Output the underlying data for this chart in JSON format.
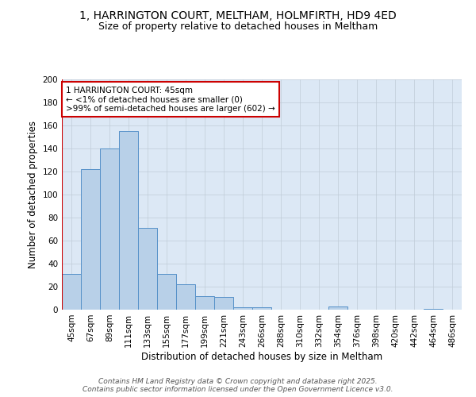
{
  "title": "1, HARRINGTON COURT, MELTHAM, HOLMFIRTH, HD9 4ED",
  "subtitle": "Size of property relative to detached houses in Meltham",
  "xlabel": "Distribution of detached houses by size in Meltham",
  "ylabel": "Number of detached properties",
  "categories": [
    "45sqm",
    "67sqm",
    "89sqm",
    "111sqm",
    "133sqm",
    "155sqm",
    "177sqm",
    "199sqm",
    "221sqm",
    "243sqm",
    "266sqm",
    "288sqm",
    "310sqm",
    "332sqm",
    "354sqm",
    "376sqm",
    "398sqm",
    "420sqm",
    "442sqm",
    "464sqm",
    "486sqm"
  ],
  "values": [
    31,
    122,
    140,
    155,
    71,
    31,
    22,
    12,
    11,
    2,
    2,
    0,
    0,
    0,
    3,
    0,
    0,
    0,
    0,
    1,
    0
  ],
  "bar_color": "#b8d0e8",
  "bar_edge_color": "#5590c8",
  "highlight_color": "#cc0000",
  "annotation_line1": "1 HARRINGTON COURT: 45sqm",
  "annotation_line2": "← <1% of detached houses are smaller (0)",
  "annotation_line3": ">99% of semi-detached houses are larger (602) →",
  "annotation_box_color": "#ffffff",
  "annotation_box_edge": "#cc0000",
  "ylim": [
    0,
    200
  ],
  "yticks": [
    0,
    20,
    40,
    60,
    80,
    100,
    120,
    140,
    160,
    180,
    200
  ],
  "background_color": "#dce8f5",
  "footer_line1": "Contains HM Land Registry data © Crown copyright and database right 2025.",
  "footer_line2": "Contains public sector information licensed under the Open Government Licence v3.0.",
  "title_fontsize": 10,
  "subtitle_fontsize": 9,
  "axis_label_fontsize": 8.5,
  "tick_fontsize": 7.5,
  "annotation_fontsize": 7.5,
  "footer_fontsize": 6.5
}
